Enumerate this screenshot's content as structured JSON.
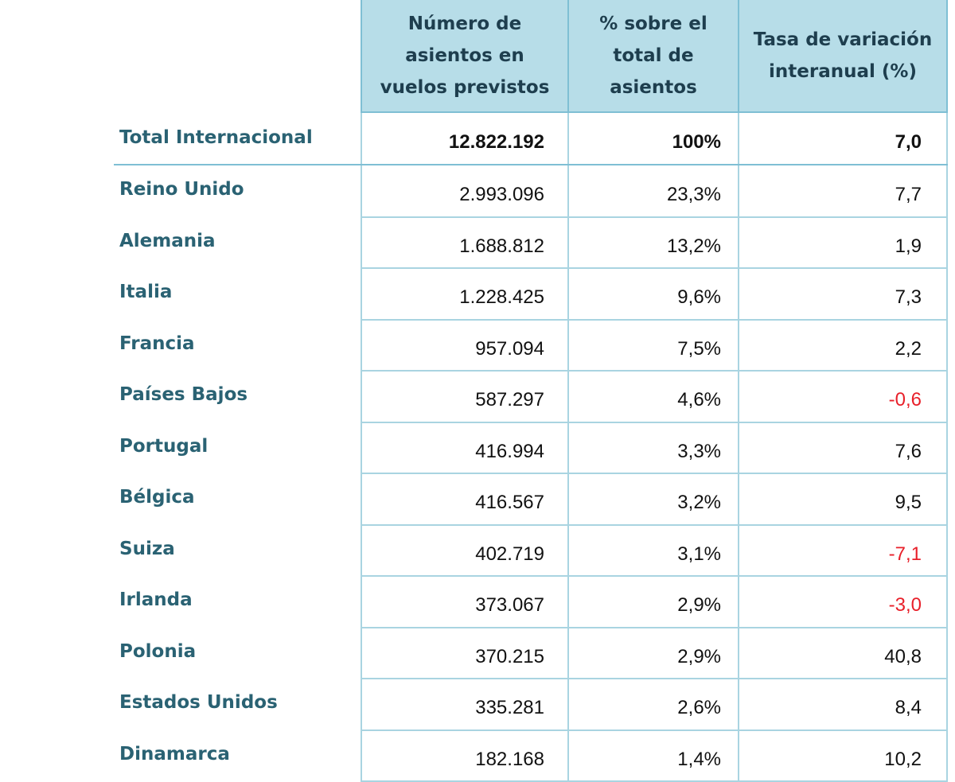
{
  "headers": {
    "col1": "Número de\nasientos en\nvuelos previstos",
    "col2": "% sobre el\ntotal de\nasientos",
    "col3": "Tasa de variación\ninteranual (%)"
  },
  "total": {
    "label": "Total Internacional",
    "seats": "12.822.192",
    "share": "100%",
    "change": "7,0"
  },
  "rows": [
    {
      "country": "Reino Unido",
      "seats": "2.993.096",
      "share": "23,3%",
      "change": "7,7",
      "negative": false
    },
    {
      "country": "Alemania",
      "seats": "1.688.812",
      "share": "13,2%",
      "change": "1,9",
      "negative": false
    },
    {
      "country": "Italia",
      "seats": "1.228.425",
      "share": "9,6%",
      "change": "7,3",
      "negative": false
    },
    {
      "country": "Francia",
      "seats": "957.094",
      "share": "7,5%",
      "change": "2,2",
      "negative": false
    },
    {
      "country": "Países Bajos",
      "seats": "587.297",
      "share": "4,6%",
      "change": "-0,6",
      "negative": true
    },
    {
      "country": "Portugal",
      "seats": "416.994",
      "share": "3,3%",
      "change": "7,6",
      "negative": false
    },
    {
      "country": "Bélgica",
      "seats": "416.567",
      "share": "3,2%",
      "change": "9,5",
      "negative": false
    },
    {
      "country": "Suiza",
      "seats": "402.719",
      "share": "3,1%",
      "change": "-7,1",
      "negative": true
    },
    {
      "country": "Irlanda",
      "seats": "373.067",
      "share": "2,9%",
      "change": "-3,0",
      "negative": true
    },
    {
      "country": "Polonia",
      "seats": "370.215",
      "share": "2,9%",
      "change": "40,8",
      "negative": false
    },
    {
      "country": "Estados Unidos",
      "seats": "335.281",
      "share": "2,6%",
      "change": "8,4",
      "negative": false
    },
    {
      "country": "Dinamarca",
      "seats": "182.168",
      "share": "1,4%",
      "change": "10,2",
      "negative": false
    }
  ],
  "colors": {
    "header_bg": "#b7dde8",
    "country_text": "#2a6273",
    "negative": "#e8202a"
  }
}
